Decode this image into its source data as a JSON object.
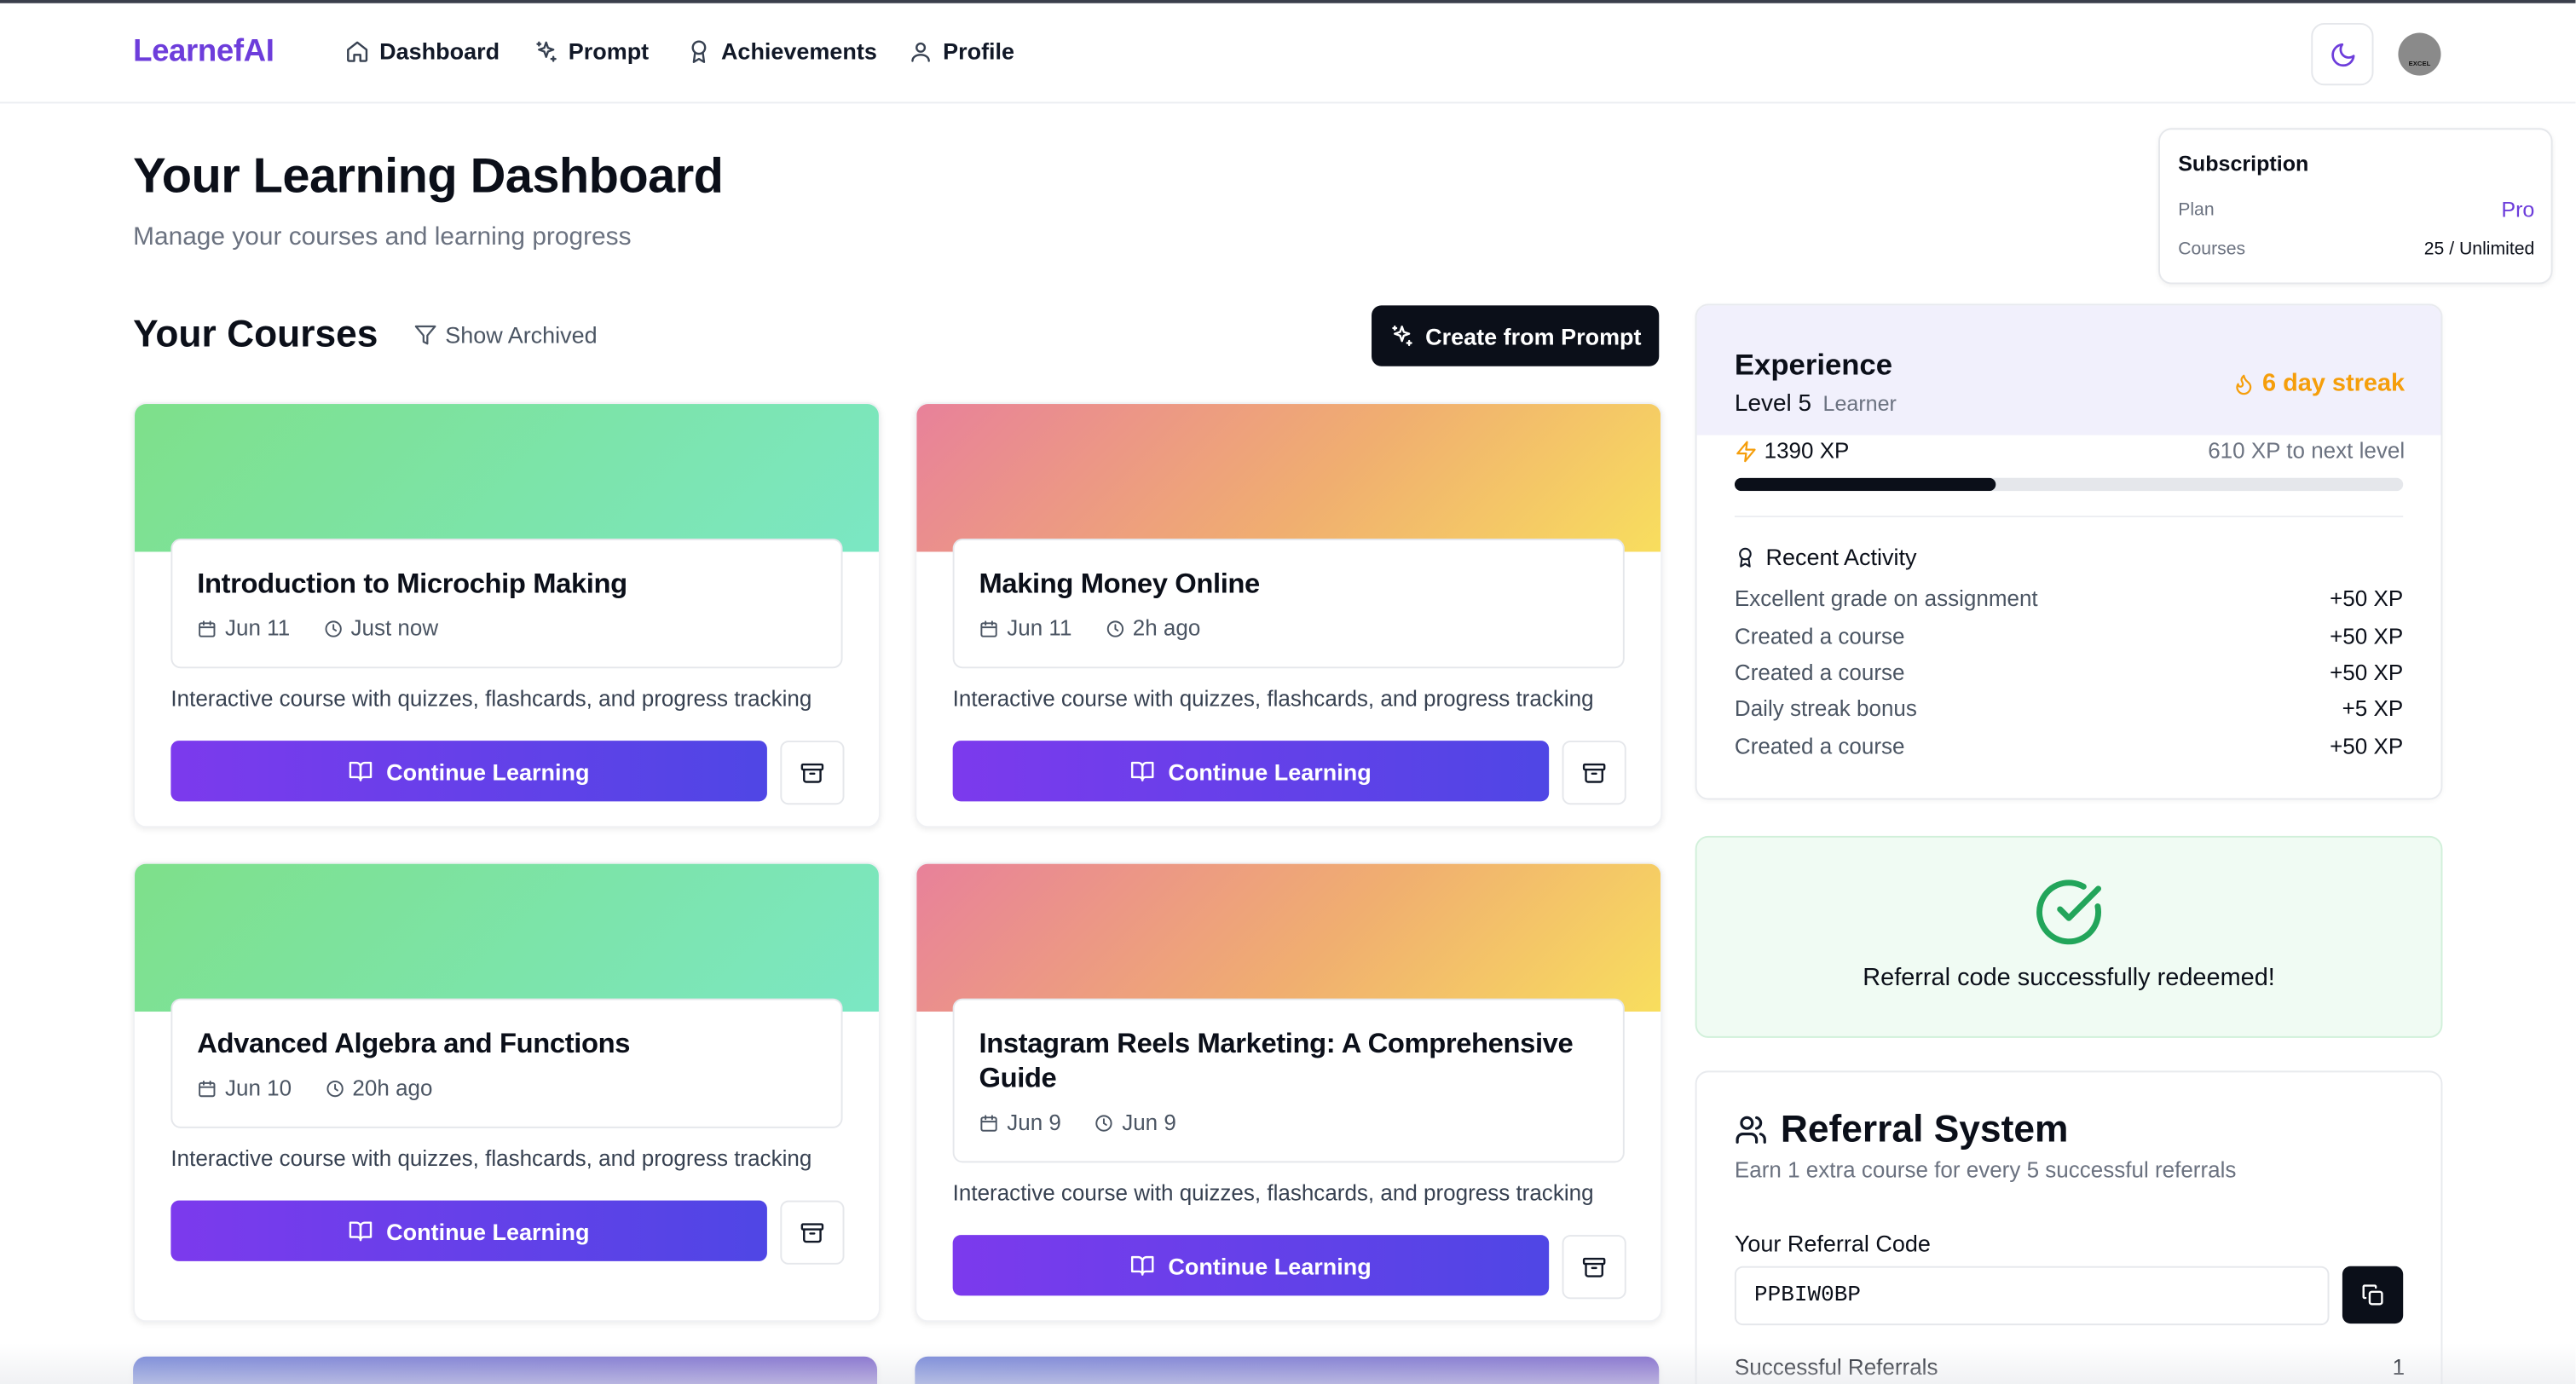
{
  "nav": {
    "logo": "LearnefAI",
    "items": [
      {
        "label": "Dashboard",
        "icon": "home-icon"
      },
      {
        "label": "Prompt",
        "icon": "sparkles-icon"
      },
      {
        "label": "Achievements",
        "icon": "award-icon"
      },
      {
        "label": "Profile",
        "icon": "user-icon"
      }
    ],
    "avatar_text": "EXCEL"
  },
  "header": {
    "title": "Your Learning Dashboard",
    "subtitle": "Manage your courses and learning progress"
  },
  "subscription": {
    "title": "Subscription",
    "plan_label": "Plan",
    "plan_value": "Pro",
    "courses_label": "Courses",
    "courses_value": "25 / Unlimited"
  },
  "courses_section": {
    "title": "Your Courses",
    "show_archived": "Show Archived",
    "create_button": "Create from Prompt"
  },
  "courses": [
    {
      "title": "Introduction to Microchip Making",
      "date": "Jun 11",
      "time": "Just now",
      "description": "Interactive course with quizzes, flashcards, and progress tracking",
      "button": "Continue Learning",
      "theme": "green"
    },
    {
      "title": "Making Money Online",
      "date": "Jun 11",
      "time": "2h ago",
      "description": "Interactive course with quizzes, flashcards, and progress tracking",
      "button": "Continue Learning",
      "theme": "warm"
    },
    {
      "title": "Advanced Algebra and Functions",
      "date": "Jun 10",
      "time": "20h ago",
      "description": "Interactive course with quizzes, flashcards, and progress tracking",
      "button": "Continue Learning",
      "theme": "green"
    },
    {
      "title": "Instagram Reels Marketing: A Comprehensive Guide",
      "date": "Jun 9",
      "time": "Jun 9",
      "description": "Interactive course with quizzes, flashcards, and progress tracking",
      "button": "Continue Learning",
      "theme": "warm"
    }
  ],
  "experience": {
    "title": "Experience",
    "level": "Level 5",
    "rank": "Learner",
    "streak": "6 day streak",
    "xp": "1390 XP",
    "to_next": "610 XP to next level",
    "progress": 0.39,
    "activity_title": "Recent Activity",
    "activity": [
      {
        "label": "Excellent grade on assignment",
        "xp": "+50 XP"
      },
      {
        "label": "Created a course",
        "xp": "+50 XP"
      },
      {
        "label": "Created a course",
        "xp": "+50 XP"
      },
      {
        "label": "Daily streak bonus",
        "xp": "+5 XP"
      },
      {
        "label": "Created a course",
        "xp": "+50 XP"
      }
    ]
  },
  "referral_success": "Referral code successfully redeemed!",
  "referral": {
    "title": "Referral System",
    "subtitle": "Earn 1 extra course for every 5 successful referrals",
    "code_label": "Your Referral Code",
    "code": "PPBIW0BP",
    "successful_label": "Successful Referrals",
    "successful_value": "1"
  },
  "colors": {
    "brand": "#6d3ddb",
    "streak": "#f59e0b",
    "success": "#22a55a"
  }
}
